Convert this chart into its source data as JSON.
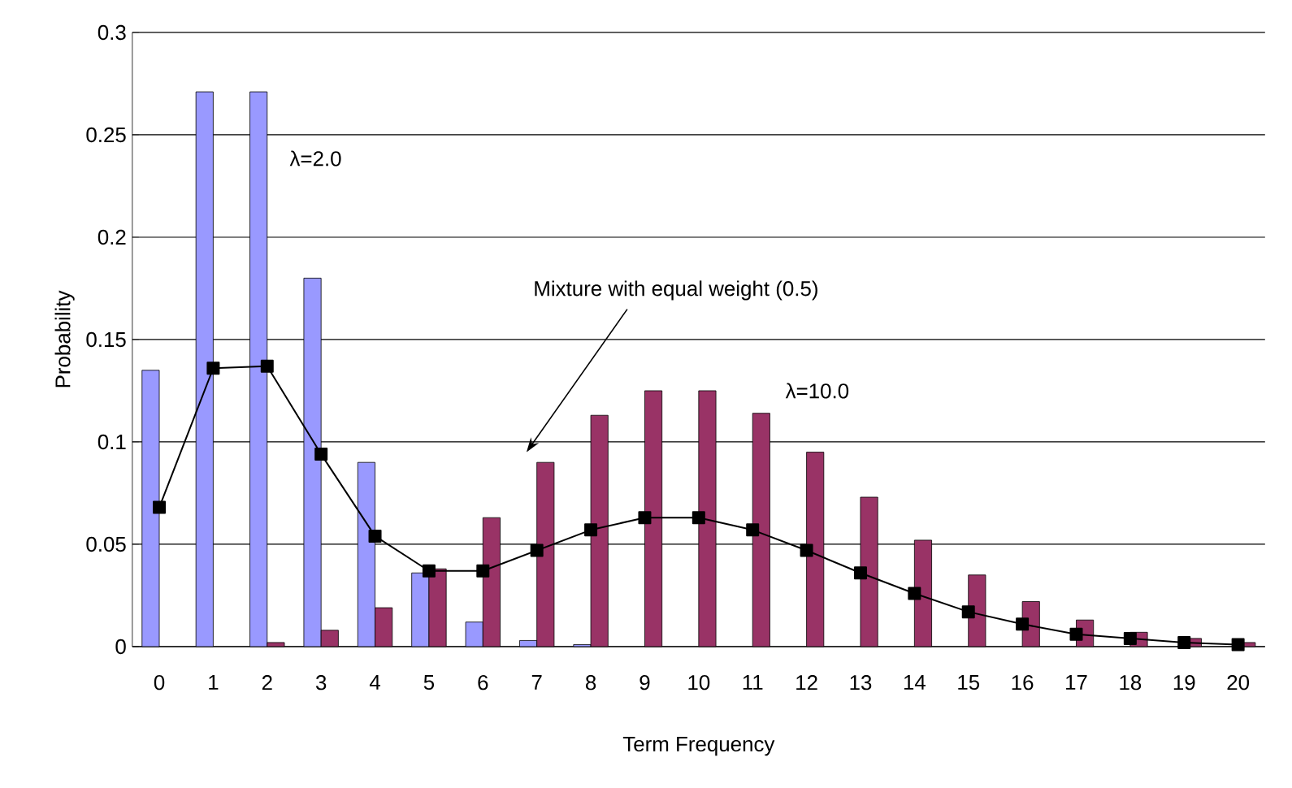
{
  "chart_data": {
    "type": "bar",
    "xlabel": "Term Frequency",
    "ylabel": "Probability",
    "categories": [
      "0",
      "1",
      "2",
      "3",
      "4",
      "5",
      "6",
      "7",
      "8",
      "9",
      "10",
      "11",
      "12",
      "13",
      "14",
      "15",
      "16",
      "17",
      "18",
      "19",
      "20"
    ],
    "series": [
      {
        "name": "λ=2.0",
        "color": "#9999ff",
        "values": [
          0.135,
          0.271,
          0.271,
          0.18,
          0.09,
          0.036,
          0.012,
          0.003,
          0.001,
          0,
          0,
          0,
          0,
          0,
          0,
          0,
          0,
          0,
          0,
          0,
          0
        ]
      },
      {
        "name": "λ=10.0",
        "color": "#993366",
        "values": [
          0,
          0,
          0.002,
          0.008,
          0.019,
          0.038,
          0.063,
          0.09,
          0.113,
          0.125,
          0.125,
          0.114,
          0.095,
          0.073,
          0.052,
          0.035,
          0.022,
          0.013,
          0.007,
          0.004,
          0.002
        ]
      },
      {
        "type": "line",
        "color": "#000000",
        "marker": "square",
        "line_style": "solid",
        "values": [
          0.068,
          0.136,
          0.137,
          0.094,
          0.054,
          0.037,
          0.037,
          0.047,
          0.057,
          0.063,
          0.063,
          0.057,
          0.047,
          0.036,
          0.026,
          0.017,
          0.011,
          0.006,
          0.004,
          0.002,
          0.001
        ]
      }
    ],
    "annotations": [
      "Mixture with equal weight (0.5)"
    ],
    "ylim": [
      0,
      0.3
    ],
    "yticks": [
      0,
      0.05,
      0.1,
      0.15,
      0.2,
      0.25,
      0.3
    ],
    "grid": "y"
  }
}
